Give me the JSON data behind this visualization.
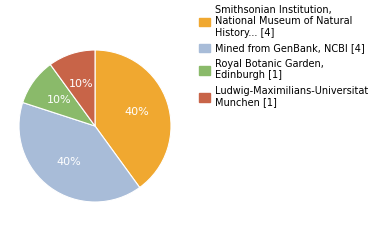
{
  "slices": [
    {
      "label": "Smithsonian Institution,\nNational Museum of Natural\nHistory... [4]",
      "value": 4,
      "color": "#f0a830",
      "pct": "40%"
    },
    {
      "label": "Mined from GenBank, NCBI [4]",
      "value": 4,
      "color": "#a8bcd8",
      "pct": "40%"
    },
    {
      "label": "Royal Botanic Garden,\nEdinburgh [1]",
      "value": 1,
      "color": "#8aba6a",
      "pct": "10%"
    },
    {
      "label": "Ludwig-Maximilians-Universitat\nMunchen [1]",
      "value": 1,
      "color": "#c86448",
      "pct": "10%"
    }
  ],
  "text_color": "#ffffff",
  "pct_fontsize": 8,
  "legend_fontsize": 7,
  "background_color": "#ffffff"
}
